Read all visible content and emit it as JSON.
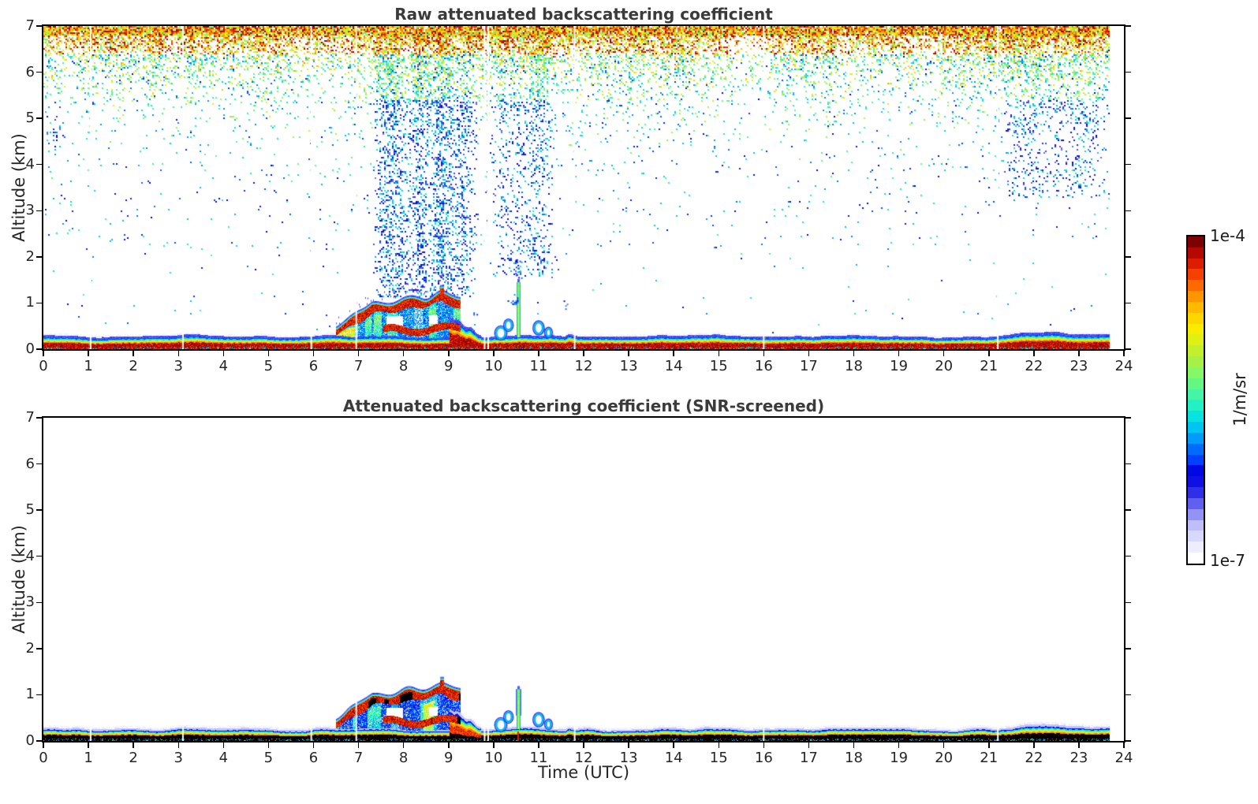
{
  "figure": {
    "background": "#ffffff",
    "title_color": "#3b3b3b",
    "tick_color": "#262626",
    "axis_color": "#000000"
  },
  "colorbar": {
    "label_top": "1e-4",
    "label_bottom": "1e-7",
    "unit_label": "1/m/sr",
    "n_bands": 30,
    "stops": [
      [
        0,
        "#ffffff"
      ],
      [
        0.05,
        "#e6e6ff"
      ],
      [
        0.1,
        "#c3c3fa"
      ],
      [
        0.14,
        "#9191f5"
      ],
      [
        0.18,
        "#5555f0"
      ],
      [
        0.22,
        "#1d1de8"
      ],
      [
        0.27,
        "#0000e0"
      ],
      [
        0.31,
        "#0040ff"
      ],
      [
        0.36,
        "#0080ff"
      ],
      [
        0.4,
        "#00b8f8"
      ],
      [
        0.44,
        "#00e0e8"
      ],
      [
        0.48,
        "#20f0c8"
      ],
      [
        0.53,
        "#50f898"
      ],
      [
        0.58,
        "#80fa68"
      ],
      [
        0.63,
        "#b0f040"
      ],
      [
        0.68,
        "#d8f018"
      ],
      [
        0.72,
        "#f8f000"
      ],
      [
        0.77,
        "#ffd000"
      ],
      [
        0.82,
        "#ffa000"
      ],
      [
        0.87,
        "#ff6000"
      ],
      [
        0.91,
        "#f03000"
      ],
      [
        0.95,
        "#cc0d00"
      ],
      [
        1,
        "#7f0000"
      ]
    ]
  },
  "chart_data": [
    {
      "type": "heatmap",
      "title": "Raw attenuated backscattering coefficient",
      "xlabel": "",
      "ylabel": "Altitude (km)",
      "xlim": [
        0,
        24
      ],
      "ylim": [
        0,
        7
      ],
      "xticks": [
        0,
        1,
        2,
        3,
        4,
        5,
        6,
        7,
        8,
        9,
        10,
        11,
        12,
        13,
        14,
        15,
        16,
        17,
        18,
        19,
        20,
        21,
        22,
        23,
        24
      ],
      "yticks": [
        0,
        1,
        2,
        3,
        4,
        5,
        6,
        7
      ],
      "value_scale": {
        "min": "1e-7",
        "max": "1e-4",
        "units": "1/m/sr"
      },
      "seed": 101,
      "features": {
        "data_end_time": 23.7,
        "gaps": [
          1.05,
          3.1,
          5.95,
          6.95,
          9.8,
          9.88,
          11.8,
          16.0,
          21.2
        ],
        "noise": {
          "enabled": true,
          "top_band_alt": 6.82,
          "scale_height_km": 0.62,
          "dip_t": 15.6,
          "dense_columns": [
            {
              "t0": 7.3,
              "t1": 9.65,
              "alt_min": 1.15,
              "strength": 0.3
            },
            {
              "t0": 9.9,
              "t1": 11.45,
              "alt_min": 1.55,
              "strength": 0.12
            },
            {
              "t0": 21.3,
              "t1": 23.7,
              "alt_min": 3.3,
              "strength": 0.1
            },
            {
              "t0": 0.0,
              "t1": 0.55,
              "alt_min": 4.2,
              "strength": 0.08
            }
          ]
        },
        "surface_layer": {
          "top_km": 0.27,
          "right_thicken_start": 21.2,
          "right_thicken_km": 0.06,
          "core": "darkred"
        },
        "cloud_event": {
          "t0": 6.5,
          "t1": 9.27,
          "base_profile": [
            [
              6.5,
              0.32
            ],
            [
              6.9,
              0.52
            ],
            [
              7.3,
              0.78
            ],
            [
              7.9,
              0.84
            ],
            [
              8.5,
              0.95
            ],
            [
              8.85,
              1.02
            ],
            [
              9.27,
              0.88
            ]
          ],
          "thickness_km": 0.17,
          "spike_t": 8.85,
          "spike_top_km": 1.32,
          "lower_band": {
            "t0": 7.55,
            "alt_km": 0.4,
            "thickness_km": 0.14
          },
          "holes": [
            [
              7.62,
              7.98,
              0.48,
              0.72
            ],
            [
              8.55,
              8.75,
              0.55,
              0.75
            ]
          ]
        },
        "wedge": {
          "t0": 9.02,
          "t1": 9.72,
          "alt_start": 0.72,
          "alt_end": 0.3
        },
        "spike": {
          "t": 10.55,
          "top_km": 1.45,
          "red_base": false
        },
        "rings": [
          {
            "t": 10.16,
            "alt": 0.35,
            "rt": 0.1,
            "ralt": 0.12
          },
          {
            "t": 10.33,
            "alt": 0.52,
            "rt": 0.07,
            "ralt": 0.1
          },
          {
            "t": 11.0,
            "alt": 0.46,
            "rt": 0.09,
            "ralt": 0.12
          },
          {
            "t": 11.22,
            "alt": 0.36,
            "rt": 0.05,
            "ralt": 0.08
          }
        ],
        "dot_clusters": [
          {
            "t": 10.42,
            "alt": 1.05,
            "rt": 0.18,
            "ralt": 0.18,
            "p": 0.3
          },
          {
            "t": 11.55,
            "alt": 0.95,
            "rt": 0.1,
            "ralt": 0.14,
            "p": 0.25
          },
          {
            "t": 9.6,
            "alt": 0.78,
            "rt": 0.12,
            "ralt": 0.12,
            "p": 0.2
          }
        ],
        "bump": {
          "t0": 11.58,
          "t1": 11.8,
          "extra_km": 0.05
        }
      }
    },
    {
      "type": "heatmap",
      "title": "Attenuated backscattering coefficient (SNR-screened)",
      "xlabel": "Time (UTC)",
      "ylabel": "Altitude (km)",
      "xlim": [
        0,
        24
      ],
      "ylim": [
        0,
        7
      ],
      "xticks": [
        0,
        1,
        2,
        3,
        4,
        5,
        6,
        7,
        8,
        9,
        10,
        11,
        12,
        13,
        14,
        15,
        16,
        17,
        18,
        19,
        20,
        21,
        22,
        23,
        24
      ],
      "yticks": [
        0,
        1,
        2,
        3,
        4,
        5,
        6,
        7
      ],
      "value_scale": {
        "min": "1e-7",
        "max": "1e-4",
        "units": "1/m/sr"
      },
      "seed": 202,
      "features": {
        "data_end_time": 23.7,
        "gaps": [
          1.05,
          3.1,
          5.95,
          6.95,
          9.8,
          9.88,
          11.8,
          16.0,
          21.2
        ],
        "noise": {
          "enabled": false,
          "top_band_alt": 6.82,
          "scale_height_km": 0.62,
          "dip_t": 15.6,
          "dense_columns": []
        },
        "surface_layer": {
          "top_km": 0.26,
          "right_thicken_start": 21.2,
          "right_thicken_km": 0.06,
          "core": "black"
        },
        "cloud_event": {
          "t0": 6.5,
          "t1": 9.27,
          "base_profile": [
            [
              6.5,
              0.32
            ],
            [
              6.9,
              0.52
            ],
            [
              7.3,
              0.78
            ],
            [
              7.9,
              0.84
            ],
            [
              8.5,
              0.95
            ],
            [
              8.85,
              1.02
            ],
            [
              9.27,
              0.88
            ]
          ],
          "thickness_km": 0.17,
          "spike_t": 8.85,
          "spike_top_km": 1.32,
          "lower_band": {
            "t0": 7.55,
            "alt_km": 0.4,
            "thickness_km": 0.14
          },
          "holes": [
            [
              7.62,
              7.98,
              0.48,
              0.72
            ],
            [
              8.55,
              8.75,
              0.55,
              0.75
            ]
          ]
        },
        "wedge": {
          "t0": 9.02,
          "t1": 9.72,
          "alt_start": 0.72,
          "alt_end": 0.3
        },
        "spike": {
          "t": 10.55,
          "top_km": 1.12,
          "red_base": true
        },
        "rings": [
          {
            "t": 10.16,
            "alt": 0.35,
            "rt": 0.1,
            "ralt": 0.12
          },
          {
            "t": 10.33,
            "alt": 0.52,
            "rt": 0.07,
            "ralt": 0.1
          },
          {
            "t": 11.0,
            "alt": 0.46,
            "rt": 0.09,
            "ralt": 0.12
          },
          {
            "t": 11.22,
            "alt": 0.36,
            "rt": 0.05,
            "ralt": 0.08
          }
        ],
        "dot_clusters": [],
        "bump": {
          "t0": 11.58,
          "t1": 11.8,
          "extra_km": 0.05
        }
      }
    }
  ]
}
